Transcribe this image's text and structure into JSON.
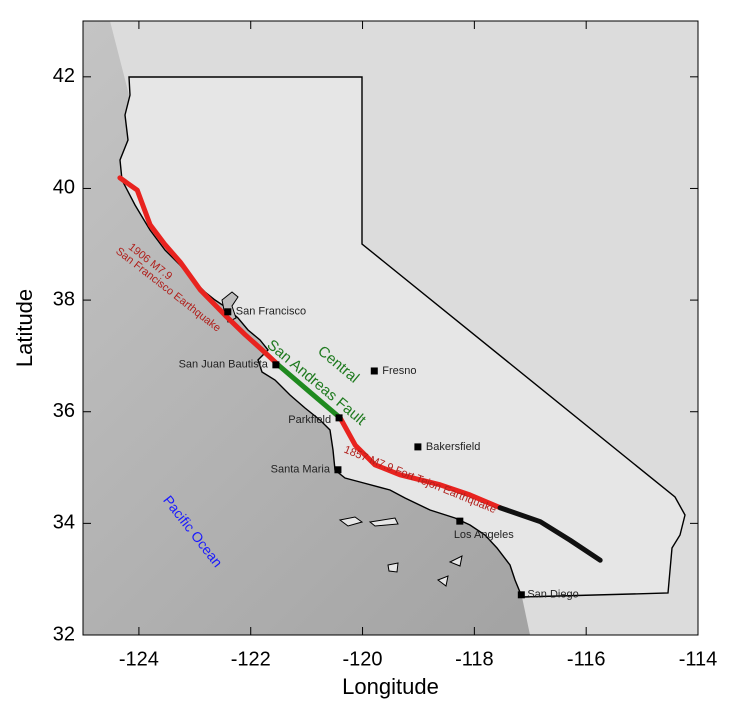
{
  "chart_data": {
    "type": "map",
    "xlabel": "Longitude",
    "ylabel": "Latitude",
    "xlim": [
      -125,
      -114
    ],
    "ylim": [
      32,
      43
    ],
    "xticks": [
      -124,
      -122,
      -120,
      -118,
      -116,
      -114
    ],
    "yticks": [
      32,
      34,
      36,
      38,
      40,
      42
    ],
    "lines": [
      {
        "color": "#e8231f",
        "x": [
          -124.34,
          -124.03,
          -123.8,
          -123.53,
          -123.26,
          -122.9,
          -122.46,
          -122.1,
          -121.8,
          -121.51
        ],
        "y": [
          40.19,
          39.97,
          39.35,
          38.99,
          38.68,
          38.18,
          37.73,
          37.38,
          37.11,
          36.84
        ]
      },
      {
        "color": "#1f8a1f",
        "x": [
          -121.51,
          -120.94,
          -120.4
        ],
        "y": [
          36.84,
          36.35,
          35.89
        ]
      },
      {
        "color": "#e8231f",
        "x": [
          -120.4,
          -120.13,
          -119.78,
          -119.33,
          -118.61,
          -118.08,
          -117.54
        ],
        "y": [
          35.89,
          35.4,
          35.05,
          34.87,
          34.69,
          34.51,
          34.28
        ]
      },
      {
        "color": "#111111",
        "x": [
          -117.54,
          -116.82,
          -116.29,
          -115.75
        ],
        "y": [
          34.28,
          34.03,
          33.7,
          33.34
        ]
      }
    ],
    "cities": {
      "labels": [
        "San Francisco",
        "San Juan Bautista",
        "Fresno",
        "Parkfield",
        "Bakersfield",
        "Santa Maria",
        "Los Angeles",
        "San Diego"
      ],
      "x": [
        -122.41,
        -121.55,
        -119.79,
        -120.42,
        -119.01,
        -120.44,
        -118.26,
        -117.16
      ],
      "y": [
        37.79,
        36.84,
        36.73,
        35.89,
        35.37,
        34.96,
        34.04,
        32.72
      ]
    },
    "annotations": [
      {
        "text": "1906 M7.9",
        "color": "#b0201c"
      },
      {
        "text": "San Francisco Earthquake",
        "color": "#b0201c"
      },
      {
        "text": "Central",
        "color": "#1f7a1f"
      },
      {
        "text": "San Andreas Fault",
        "color": "#1f7a1f"
      },
      {
        "text": "1857 M7.9 Fort Tejon Earthquake",
        "color": "#b0201c"
      },
      {
        "text": "Pacific Ocean",
        "color": "#1a1aff"
      }
    ]
  }
}
